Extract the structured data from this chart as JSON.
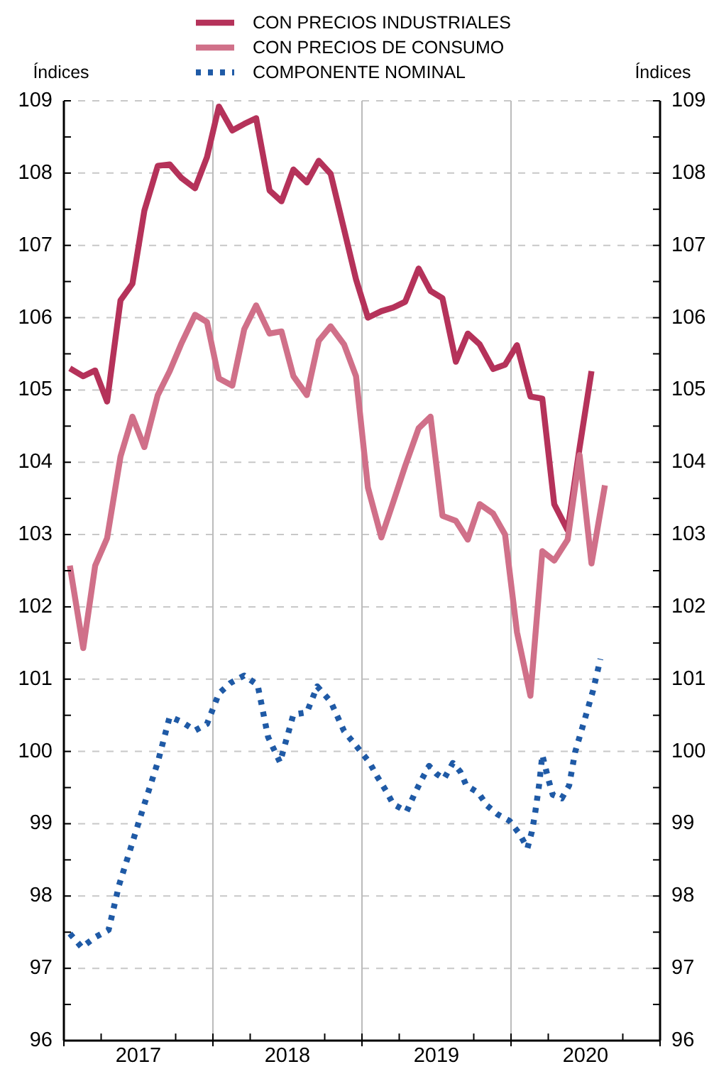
{
  "chart_data": {
    "type": "line",
    "ylabel": "Índices",
    "y2label": "Índices",
    "legend": "top",
    "grid": "y",
    "marker": "none",
    "x": [
      2017.04,
      2017.13,
      2017.21,
      2017.29,
      2017.38,
      2017.46,
      2017.54,
      2017.63,
      2017.71,
      2017.79,
      2017.88,
      2017.96,
      2018.04,
      2018.13,
      2018.21,
      2018.29,
      2018.38,
      2018.46,
      2018.54,
      2018.63,
      2018.71,
      2018.79,
      2018.88,
      2018.96,
      2019.04,
      2019.13,
      2019.21,
      2019.29,
      2019.38,
      2019.46,
      2019.54,
      2019.63,
      2019.71,
      2019.79,
      2019.88,
      2019.96,
      2020.04,
      2020.13,
      2020.21,
      2020.29,
      2020.38,
      2020.46,
      2020.54,
      2020.63
    ],
    "xlim": [
      2017,
      2021
    ],
    "xticks": [
      {
        "value": 2017,
        "label": null
      },
      {
        "value": 2017.25,
        "label": null
      },
      {
        "value": 2017.5,
        "label": "2017"
      },
      {
        "value": 2017.75,
        "label": null
      },
      {
        "value": 2018,
        "label": null
      },
      {
        "value": 2018.25,
        "label": null
      },
      {
        "value": 2018.5,
        "label": "2018"
      },
      {
        "value": 2018.75,
        "label": null
      },
      {
        "value": 2019,
        "label": null
      },
      {
        "value": 2019.25,
        "label": null
      },
      {
        "value": 2019.5,
        "label": "2019"
      },
      {
        "value": 2019.75,
        "label": null
      },
      {
        "value": 2020,
        "label": null
      },
      {
        "value": 2020.25,
        "label": null
      },
      {
        "value": 2020.5,
        "label": "2020"
      },
      {
        "value": 2020.75,
        "label": null
      },
      {
        "value": 2021,
        "label": null
      }
    ],
    "ylim": [
      96,
      109
    ],
    "yticks": [
      96,
      {
        "value": 96.5,
        "label": null
      },
      97,
      {
        "value": 97.5,
        "label": null
      },
      98,
      {
        "value": 98.5,
        "label": null
      },
      99,
      {
        "value": 99.5,
        "label": null
      },
      100,
      {
        "value": 100.5,
        "label": null
      },
      101,
      {
        "value": 101.5,
        "label": null
      },
      102,
      {
        "value": 102.5,
        "label": null
      },
      103,
      {
        "value": 103.5,
        "label": null
      },
      104,
      {
        "value": 104.5,
        "label": null
      },
      105,
      {
        "value": 105.5,
        "label": null
      },
      106,
      {
        "value": 106.5,
        "label": null
      },
      107,
      {
        "value": 107.5,
        "label": null
      },
      108,
      {
        "value": 108.5,
        "label": null
      },
      109
    ],
    "y2lim": [
      96,
      109
    ],
    "y2ticks": [
      96,
      {
        "value": 96.5,
        "label": null
      },
      97,
      {
        "value": 97.5,
        "label": null
      },
      98,
      {
        "value": 98.5,
        "label": null
      },
      99,
      {
        "value": 99.5,
        "label": null
      },
      100,
      {
        "value": 100.5,
        "label": null
      },
      101,
      {
        "value": 101.5,
        "label": null
      },
      102,
      {
        "value": 102.5,
        "label": null
      },
      103,
      {
        "value": 103.5,
        "label": null
      },
      104,
      {
        "value": 104.5,
        "label": null
      },
      105,
      {
        "value": 105.5,
        "label": null
      },
      106,
      {
        "value": 106.5,
        "label": null
      },
      107,
      {
        "value": 107.5,
        "label": null
      },
      108,
      {
        "value": 108.5,
        "label": null
      },
      109
    ],
    "ref_lines": [
      {
        "axis": "x",
        "value": 2018,
        "color": "#bbbbbb"
      },
      {
        "axis": "x",
        "value": 2019,
        "color": "#bbbbbb"
      },
      {
        "axis": "x",
        "value": 2020,
        "color": "#bbbbbb"
      }
    ],
    "series": [
      {
        "name": "CON PRECIOS INDUSTRIALES",
        "color": "#b5325a",
        "line_style": "solid",
        "values": [
          105.3,
          105.19,
          105.27,
          104.84,
          106.24,
          106.47,
          107.48,
          108.1,
          108.12,
          107.93,
          107.79,
          108.22,
          108.92,
          108.59,
          108.68,
          108.76,
          107.76,
          107.61,
          108.05,
          107.87,
          108.17,
          107.99,
          107.22,
          106.53,
          106.0,
          106.09,
          106.14,
          106.22,
          106.68,
          106.37,
          106.27,
          105.39,
          105.78,
          105.63,
          105.29,
          105.35,
          105.62,
          104.91,
          104.88,
          103.42,
          103.06,
          104.2,
          105.26,
          null
        ]
      },
      {
        "name": "CON PRECIOS DE CONSUMO",
        "color": "#d07089",
        "line_style": "solid",
        "values": [
          102.57,
          101.43,
          102.57,
          102.95,
          104.08,
          104.63,
          104.21,
          104.93,
          105.26,
          105.65,
          106.04,
          105.94,
          105.16,
          105.06,
          105.84,
          106.17,
          105.78,
          105.81,
          105.19,
          104.93,
          105.68,
          105.88,
          105.63,
          105.19,
          103.65,
          102.96,
          103.45,
          103.95,
          104.47,
          104.63,
          103.26,
          103.19,
          102.93,
          103.42,
          103.29,
          103.0,
          101.65,
          100.77,
          102.77,
          102.64,
          102.93,
          104.1,
          102.6,
          103.68
        ]
      },
      {
        "name": "COMPONENTE NOMINAL",
        "color": "#1f5aa6",
        "line_style": "dotted",
        "x": [
          2017.04,
          2017.12,
          2017.21,
          2017.3,
          2017.37,
          2017.46,
          2017.54,
          2017.63,
          2017.71,
          2017.79,
          2017.88,
          2017.96,
          2018.04,
          2018.12,
          2018.21,
          2018.3,
          2018.37,
          2018.45,
          2018.54,
          2018.63,
          2018.7,
          2018.79,
          2018.88,
          2018.96,
          2019.05,
          2019.1,
          2019.16,
          2019.21,
          2019.3,
          2019.35,
          2019.4,
          2019.45,
          2019.5,
          2019.55,
          2019.61,
          2019.66,
          2019.7,
          2019.78,
          2019.84,
          2019.91,
          2019.99,
          2020.06,
          2020.11,
          2020.14,
          2020.16,
          2020.19,
          2020.21,
          2020.25,
          2020.28,
          2020.34,
          2020.39,
          2020.43,
          2020.49,
          2020.55,
          2020.6
        ],
        "values": [
          97.48,
          97.29,
          97.43,
          97.53,
          98.15,
          98.74,
          99.27,
          99.85,
          100.48,
          100.41,
          100.29,
          100.38,
          100.8,
          100.95,
          101.05,
          100.92,
          100.2,
          99.85,
          100.51,
          100.54,
          100.9,
          100.69,
          100.28,
          100.08,
          99.85,
          99.66,
          99.46,
          99.27,
          99.17,
          99.4,
          99.61,
          99.8,
          99.69,
          99.62,
          99.84,
          99.72,
          99.53,
          99.43,
          99.25,
          99.13,
          99.04,
          98.85,
          98.66,
          98.89,
          99.12,
          99.56,
          99.95,
          99.62,
          99.4,
          99.35,
          99.53,
          99.99,
          100.41,
          100.84,
          101.28
        ]
      }
    ]
  }
}
